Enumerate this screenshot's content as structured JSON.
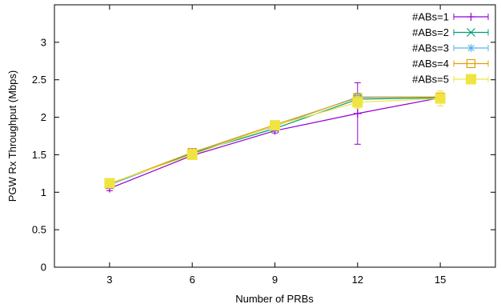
{
  "chart_data": {
    "type": "line",
    "xlabel": "Number of PRBs",
    "ylabel": "PGW Rx Throughput (Mbps)",
    "x": [
      3,
      6,
      9,
      12,
      15
    ],
    "xlim": [
      1,
      17
    ],
    "ylim": [
      0,
      3.5
    ],
    "xticks": [
      "3",
      "6",
      "9",
      "12",
      "15"
    ],
    "yticks": [
      "0",
      "0.5",
      "1",
      "1.5",
      "2",
      "2.5",
      "3"
    ],
    "grid": false,
    "legend_position": "top-right",
    "series": [
      {
        "name": "#ABs=1",
        "color": "#9400d3",
        "marker": "plus",
        "values": [
          1.05,
          1.49,
          1.82,
          2.05,
          2.26
        ],
        "err": [
          0.03,
          0.03,
          0.03,
          0.41,
          0.04
        ]
      },
      {
        "name": "#ABs=2",
        "color": "#009e73",
        "marker": "cross",
        "values": [
          1.1,
          1.52,
          1.85,
          2.24,
          2.26
        ],
        "err": [
          0.02,
          0.02,
          0.02,
          0.05,
          0.03
        ]
      },
      {
        "name": "#ABs=3",
        "color": "#56b4e9",
        "marker": "asterisk",
        "values": [
          1.1,
          1.53,
          1.88,
          2.27,
          2.27
        ],
        "err": [
          0.02,
          0.02,
          0.02,
          0.05,
          0.03
        ]
      },
      {
        "name": "#ABs=4",
        "color": "#e69f00",
        "marker": "open-square",
        "values": [
          1.11,
          1.53,
          1.9,
          2.26,
          2.27
        ],
        "err": [
          0.02,
          0.02,
          0.02,
          0.05,
          0.03
        ]
      },
      {
        "name": "#ABs=5",
        "color": "#f0e442",
        "marker": "filled-square",
        "values": [
          1.12,
          1.5,
          1.89,
          2.2,
          2.25
        ],
        "err": [
          0.02,
          0.02,
          0.02,
          0.08,
          0.1
        ]
      }
    ]
  }
}
